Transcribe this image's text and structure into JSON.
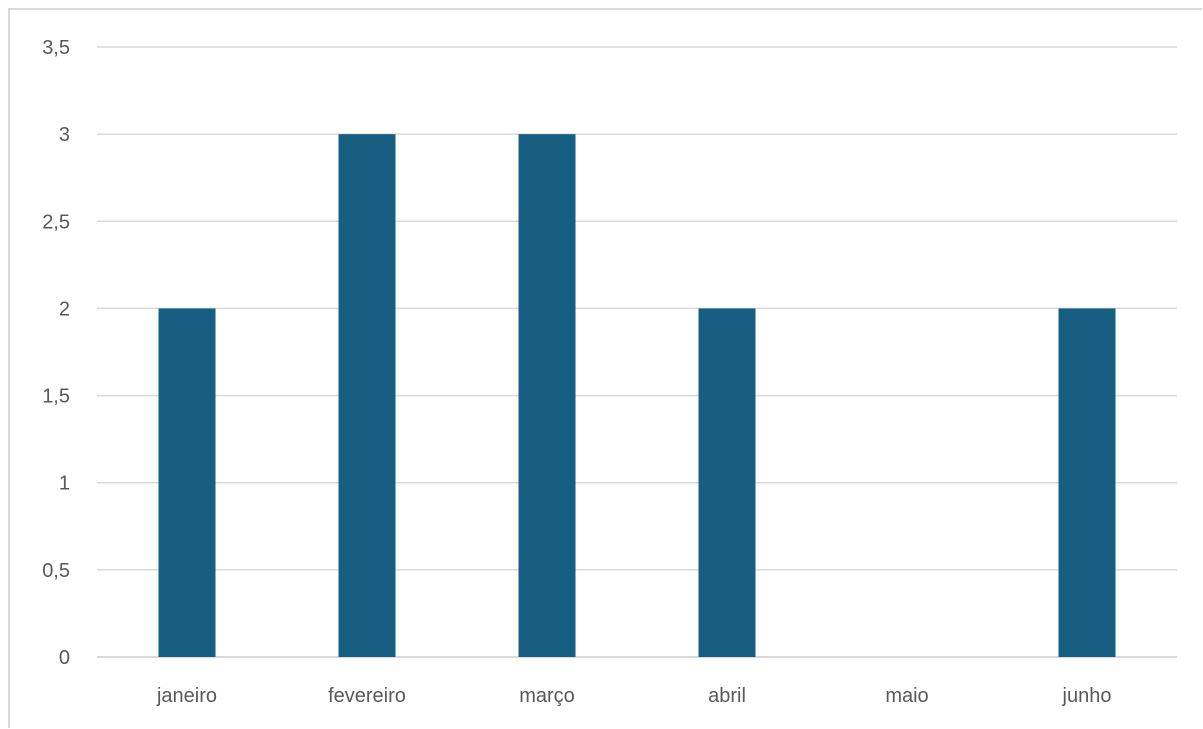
{
  "chart_data": {
    "type": "bar",
    "title": "",
    "xlabel": "",
    "ylabel": "",
    "categories": [
      "janeiro",
      "fevereiro",
      "março",
      "abril",
      "maio",
      "junho"
    ],
    "values": [
      2,
      3,
      3,
      2,
      0,
      2
    ],
    "ylim": [
      0,
      3.5
    ],
    "y_ticks": [
      "0",
      "0,5",
      "1",
      "1,5",
      "2",
      "2,5",
      "3",
      "3,5"
    ],
    "y_tick_values": [
      0,
      0.5,
      1,
      1.5,
      2,
      2.5,
      3,
      3.5
    ],
    "grid": true,
    "legend": "none",
    "bar_color": "#175f82",
    "grid_color": "#d9d9d9"
  }
}
